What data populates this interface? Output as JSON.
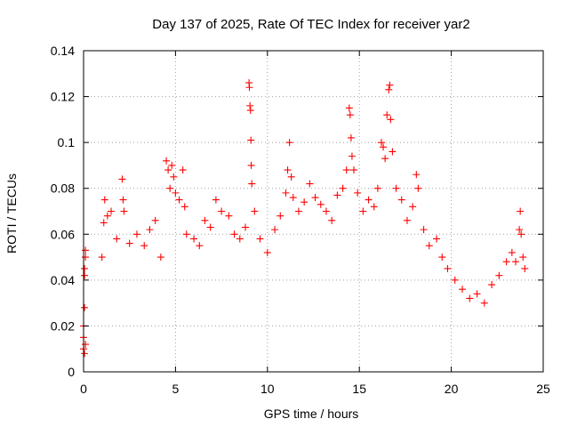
{
  "chart_data": {
    "type": "scatter",
    "title": "Day 137 of 2025, Rate Of TEC Index for receiver yar2",
    "xlabel": "GPS time / hours",
    "ylabel": "ROTI / TECUs",
    "xlim": [
      0,
      25
    ],
    "ylim": [
      0,
      0.14
    ],
    "xticks": [
      0,
      5,
      10,
      15,
      20,
      25
    ],
    "xtick_labels": [
      "0",
      "5",
      "10",
      "15",
      "20",
      "25"
    ],
    "yticks": [
      0,
      0.02,
      0.04,
      0.06,
      0.08,
      0.1,
      0.12,
      0.14
    ],
    "ytick_labels": [
      "0",
      "0.02",
      "0.04",
      "0.06",
      "0.08",
      "0.1",
      "0.12",
      "0.14"
    ],
    "grid": true,
    "marker": "plus",
    "color": "#ff0000",
    "series": [
      {
        "values": [
          [
            0.0,
            0.01
          ],
          [
            0.0,
            0.015
          ],
          [
            0.0,
            0.02
          ],
          [
            0.05,
            0.028
          ],
          [
            0.05,
            0.042
          ],
          [
            0.05,
            0.045
          ],
          [
            0.1,
            0.05
          ],
          [
            0.1,
            0.053
          ],
          [
            0.1,
            0.012
          ],
          [
            0.05,
            0.008
          ],
          [
            1.0,
            0.05
          ],
          [
            1.1,
            0.065
          ],
          [
            1.15,
            0.075
          ],
          [
            1.3,
            0.068
          ],
          [
            1.5,
            0.07
          ],
          [
            1.8,
            0.058
          ],
          [
            2.1,
            0.084
          ],
          [
            2.15,
            0.075
          ],
          [
            2.2,
            0.07
          ],
          [
            2.5,
            0.056
          ],
          [
            2.9,
            0.06
          ],
          [
            3.3,
            0.055
          ],
          [
            3.6,
            0.062
          ],
          [
            3.9,
            0.066
          ],
          [
            4.2,
            0.05
          ],
          [
            4.5,
            0.092
          ],
          [
            4.6,
            0.088
          ],
          [
            4.7,
            0.08
          ],
          [
            4.8,
            0.09
          ],
          [
            4.9,
            0.085
          ],
          [
            5.0,
            0.078
          ],
          [
            5.2,
            0.075
          ],
          [
            5.4,
            0.088
          ],
          [
            5.5,
            0.072
          ],
          [
            5.6,
            0.06
          ],
          [
            6.0,
            0.058
          ],
          [
            6.3,
            0.055
          ],
          [
            6.6,
            0.066
          ],
          [
            6.9,
            0.063
          ],
          [
            7.2,
            0.075
          ],
          [
            7.5,
            0.07
          ],
          [
            7.9,
            0.068
          ],
          [
            8.2,
            0.06
          ],
          [
            8.5,
            0.058
          ],
          [
            8.8,
            0.063
          ],
          [
            9.0,
            0.126
          ],
          [
            9.02,
            0.124
          ],
          [
            9.05,
            0.116
          ],
          [
            9.08,
            0.114
          ],
          [
            9.1,
            0.101
          ],
          [
            9.12,
            0.09
          ],
          [
            9.15,
            0.082
          ],
          [
            9.3,
            0.07
          ],
          [
            9.6,
            0.058
          ],
          [
            10.0,
            0.052
          ],
          [
            10.4,
            0.062
          ],
          [
            10.7,
            0.068
          ],
          [
            11.0,
            0.078
          ],
          [
            11.1,
            0.088
          ],
          [
            11.2,
            0.1
          ],
          [
            11.3,
            0.085
          ],
          [
            11.4,
            0.076
          ],
          [
            11.7,
            0.07
          ],
          [
            12.0,
            0.074
          ],
          [
            12.3,
            0.082
          ],
          [
            12.6,
            0.076
          ],
          [
            12.9,
            0.073
          ],
          [
            13.2,
            0.07
          ],
          [
            13.5,
            0.066
          ],
          [
            13.8,
            0.077
          ],
          [
            14.1,
            0.08
          ],
          [
            14.3,
            0.088
          ],
          [
            14.45,
            0.115
          ],
          [
            14.5,
            0.112
          ],
          [
            14.55,
            0.102
          ],
          [
            14.6,
            0.094
          ],
          [
            14.7,
            0.088
          ],
          [
            14.9,
            0.078
          ],
          [
            15.2,
            0.07
          ],
          [
            15.5,
            0.075
          ],
          [
            15.8,
            0.072
          ],
          [
            16.0,
            0.08
          ],
          [
            16.2,
            0.1
          ],
          [
            16.3,
            0.098
          ],
          [
            16.4,
            0.093
          ],
          [
            16.5,
            0.112
          ],
          [
            16.6,
            0.123
          ],
          [
            16.65,
            0.125
          ],
          [
            16.7,
            0.11
          ],
          [
            16.8,
            0.096
          ],
          [
            17.0,
            0.08
          ],
          [
            17.3,
            0.075
          ],
          [
            17.6,
            0.066
          ],
          [
            17.9,
            0.072
          ],
          [
            18.1,
            0.086
          ],
          [
            18.2,
            0.08
          ],
          [
            18.5,
            0.062
          ],
          [
            18.8,
            0.055
          ],
          [
            19.2,
            0.058
          ],
          [
            19.5,
            0.05
          ],
          [
            19.8,
            0.045
          ],
          [
            20.2,
            0.04
          ],
          [
            20.6,
            0.036
          ],
          [
            21.0,
            0.032
          ],
          [
            21.4,
            0.034
          ],
          [
            21.8,
            0.03
          ],
          [
            22.2,
            0.038
          ],
          [
            22.6,
            0.042
          ],
          [
            23.0,
            0.048
          ],
          [
            23.3,
            0.052
          ],
          [
            23.5,
            0.048
          ],
          [
            23.7,
            0.062
          ],
          [
            23.75,
            0.07
          ],
          [
            23.8,
            0.06
          ],
          [
            23.9,
            0.05
          ],
          [
            24.0,
            0.045
          ]
        ]
      }
    ]
  }
}
